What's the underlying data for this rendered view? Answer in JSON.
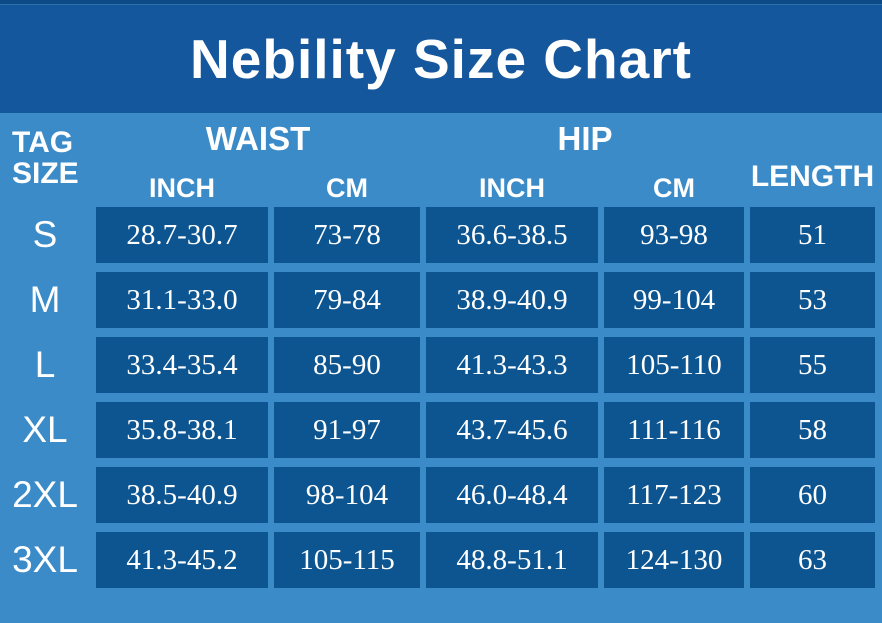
{
  "title": "Nebility Size Chart",
  "colors": {
    "banner_blue": "#15579D",
    "background_blue": "#3B8BC9",
    "cell_blue": "#0D5590",
    "text_white": "#FFFFFF"
  },
  "header": {
    "tag_size_label": "TAG\nSIZE",
    "groups": [
      {
        "label": "WAIST",
        "sub": [
          "INCH",
          "CM"
        ]
      },
      {
        "label": "HIP",
        "sub": [
          "INCH",
          "CM"
        ]
      }
    ],
    "length_label": "LENGTH"
  },
  "chart_data": {
    "type": "table",
    "title": "Nebility Size Chart",
    "columns": [
      "TAG SIZE",
      "WAIST INCH",
      "WAIST CM",
      "HIP INCH",
      "HIP CM",
      "LENGTH"
    ],
    "rows": [
      [
        "S",
        "28.7-30.7",
        "73-78",
        "36.6-38.5",
        "93-98",
        "51"
      ],
      [
        "M",
        "31.1-33.0",
        "79-84",
        "38.9-40.9",
        "99-104",
        "53"
      ],
      [
        "L",
        "33.4-35.4",
        "85-90",
        "41.3-43.3",
        "105-110",
        "55"
      ],
      [
        "XL",
        "35.8-38.1",
        "91-97",
        "43.7-45.6",
        "111-116",
        "58"
      ],
      [
        "2XL",
        "38.5-40.9",
        "98-104",
        "46.0-48.4",
        "117-123",
        "60"
      ],
      [
        "3XL",
        "41.3-45.2",
        "105-115",
        "48.8-51.1",
        "124-130",
        "63"
      ]
    ]
  }
}
